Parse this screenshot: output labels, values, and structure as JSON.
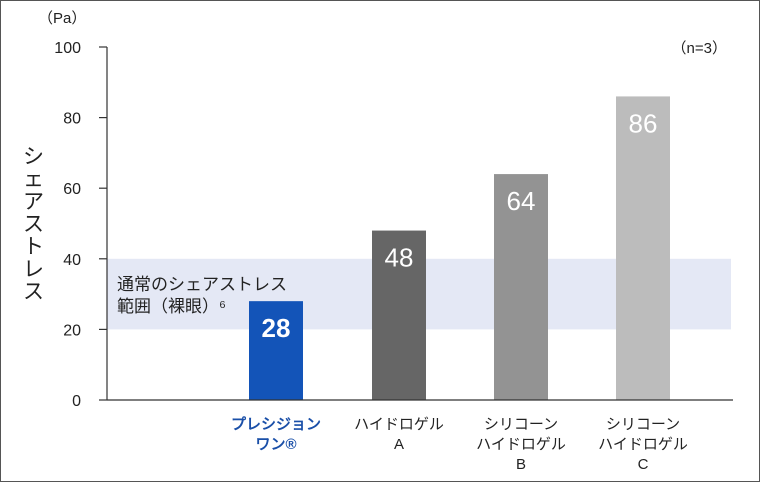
{
  "chart_data": {
    "type": "bar",
    "unit_label": "（Pa）",
    "ylabel": "シェアストレス",
    "note": "（n=3）",
    "ylim": [
      0,
      100
    ],
    "yticks": [
      "0",
      "20",
      "40",
      "60",
      "80",
      "100"
    ],
    "categories": [
      {
        "lines": [
          "プレシジョン",
          "ワン®"
        ],
        "highlight": true
      },
      {
        "lines": [
          "ハイドロゲル",
          "A"
        ],
        "highlight": false
      },
      {
        "lines": [
          "シリコーン",
          "ハイドロゲル",
          "B"
        ],
        "highlight": false
      },
      {
        "lines": [
          "シリコーン",
          "ハイドロゲル",
          "C"
        ],
        "highlight": false
      }
    ],
    "values": [
      28,
      48,
      64,
      86
    ],
    "value_labels": [
      "28",
      "48",
      "64",
      "86"
    ],
    "bar_colors": [
      "#1354b8",
      "#666666",
      "#939393",
      "#bcbcbc"
    ],
    "normal_range": {
      "lines": [
        "通常のシェアストレス",
        "範囲（裸眼）⁶"
      ],
      "from": 20,
      "to": 40,
      "color": "#e4e8f5"
    }
  }
}
